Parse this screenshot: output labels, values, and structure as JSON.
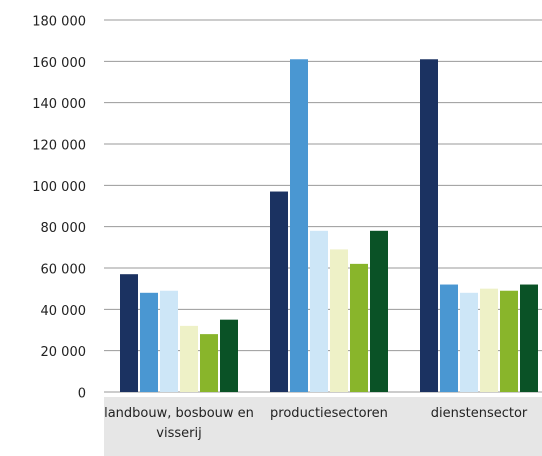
{
  "chart_data": {
    "type": "bar",
    "categories": [
      "landbouw, bosbouw en visserij",
      "productiesectoren",
      "dienstensector"
    ],
    "series": [
      {
        "color": "#1b3261",
        "values": [
          57000,
          97000,
          161000
        ]
      },
      {
        "color": "#4a97d2",
        "values": [
          48000,
          161000,
          52000
        ]
      },
      {
        "color": "#cde6f7",
        "values": [
          49000,
          78000,
          48000
        ]
      },
      {
        "color": "#eef1c7",
        "values": [
          32000,
          69000,
          50000
        ]
      },
      {
        "color": "#89b52b",
        "values": [
          28000,
          62000,
          49000
        ]
      },
      {
        "color": "#0a5226",
        "values": [
          35000,
          78000,
          52000
        ]
      }
    ],
    "ylim": [
      0,
      180000
    ],
    "yticks": [
      0,
      {
        "value": 20000,
        "label": "20 000"
      },
      {
        "value": 40000,
        "label": "40 000"
      },
      {
        "value": 60000,
        "label": "60 000"
      },
      {
        "value": 80000,
        "label": "80 000"
      },
      {
        "value": 100000,
        "label": "100 000"
      },
      {
        "value": 120000,
        "label": "120 000"
      },
      {
        "value": 140000,
        "label": "140 000"
      },
      {
        "value": 160000,
        "label": "160 000"
      },
      {
        "value": 180000,
        "label": "180 000"
      }
    ],
    "grid": true
  }
}
